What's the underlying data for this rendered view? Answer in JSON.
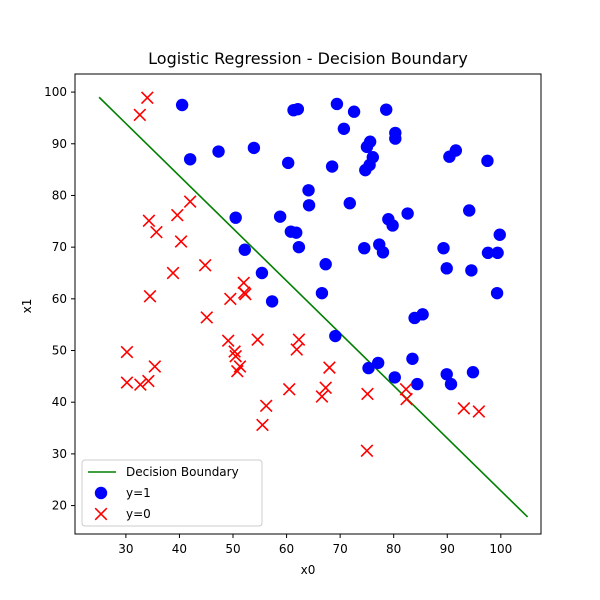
{
  "chart_data": {
    "type": "scatter",
    "title": "Logistic Regression - Decision Boundary",
    "xlabel": "x0",
    "ylabel": "x1",
    "xlim": [
      20.5,
      107.5
    ],
    "ylim": [
      14.5,
      103.5
    ],
    "xticks": [
      30,
      40,
      50,
      60,
      70,
      80,
      90,
      100
    ],
    "yticks": [
      20,
      30,
      40,
      50,
      60,
      70,
      80,
      90,
      100
    ],
    "grid": false,
    "legend_position": "lower-left",
    "legend": [
      {
        "label": "Decision Boundary",
        "kind": "line",
        "color": "#008000"
      },
      {
        "label": "y=1",
        "kind": "circle",
        "color": "#0000ff"
      },
      {
        "label": "y=0",
        "kind": "x",
        "color": "#ff0000"
      }
    ],
    "series": [
      {
        "name": "Decision Boundary",
        "kind": "line",
        "color": "#008000",
        "points": [
          [
            25.0,
            99.0
          ],
          [
            105.0,
            17.8
          ]
        ]
      },
      {
        "name": "y=1",
        "kind": "circle",
        "color": "#0000ff",
        "points": [
          [
            40.5,
            97.5
          ],
          [
            42.0,
            87.0
          ],
          [
            47.3,
            88.5
          ],
          [
            50.5,
            75.7
          ],
          [
            52.2,
            69.5
          ],
          [
            53.9,
            89.2
          ],
          [
            55.4,
            65.0
          ],
          [
            57.3,
            59.5
          ],
          [
            58.8,
            75.9
          ],
          [
            60.3,
            86.3
          ],
          [
            60.8,
            73.0
          ],
          [
            61.3,
            96.5
          ],
          [
            61.8,
            72.8
          ],
          [
            62.1,
            96.7
          ],
          [
            62.3,
            70.0
          ],
          [
            64.1,
            81.0
          ],
          [
            64.2,
            78.1
          ],
          [
            66.6,
            61.1
          ],
          [
            67.3,
            66.7
          ],
          [
            68.5,
            85.6
          ],
          [
            69.1,
            52.8
          ],
          [
            69.4,
            97.7
          ],
          [
            70.7,
            92.9
          ],
          [
            71.8,
            78.5
          ],
          [
            72.6,
            96.2
          ],
          [
            74.5,
            69.8
          ],
          [
            74.7,
            84.9
          ],
          [
            75.0,
            89.4
          ],
          [
            75.3,
            46.6
          ],
          [
            75.5,
            85.9
          ],
          [
            75.6,
            90.4
          ],
          [
            76.1,
            87.4
          ],
          [
            77.1,
            47.6
          ],
          [
            77.3,
            70.5
          ],
          [
            78.0,
            69.0
          ],
          [
            78.6,
            96.6
          ],
          [
            79.0,
            75.4
          ],
          [
            79.8,
            74.2
          ],
          [
            80.2,
            44.8
          ],
          [
            80.3,
            91.0
          ],
          [
            80.3,
            92.1
          ],
          [
            82.6,
            76.5
          ],
          [
            83.5,
            48.4
          ],
          [
            83.9,
            56.3
          ],
          [
            84.4,
            43.5
          ],
          [
            85.4,
            57.0
          ],
          [
            89.3,
            69.8
          ],
          [
            89.9,
            65.9
          ],
          [
            89.9,
            45.4
          ],
          [
            90.4,
            87.5
          ],
          [
            90.7,
            43.5
          ],
          [
            91.6,
            88.7
          ],
          [
            94.1,
            77.1
          ],
          [
            94.5,
            65.5
          ],
          [
            94.8,
            45.8
          ],
          [
            97.5,
            86.7
          ],
          [
            97.6,
            68.9
          ],
          [
            99.3,
            61.1
          ],
          [
            99.4,
            68.9
          ],
          [
            99.8,
            72.4
          ]
        ]
      },
      {
        "name": "y=0",
        "kind": "x",
        "color": "#ff0000",
        "points": [
          [
            30.2,
            43.8
          ],
          [
            30.2,
            49.7
          ],
          [
            32.6,
            95.6
          ],
          [
            32.7,
            43.4
          ],
          [
            34.0,
            98.9
          ],
          [
            34.2,
            44.1
          ],
          [
            34.3,
            75.1
          ],
          [
            34.5,
            60.5
          ],
          [
            35.4,
            46.9
          ],
          [
            35.7,
            72.9
          ],
          [
            38.8,
            65.0
          ],
          [
            39.6,
            76.2
          ],
          [
            40.3,
            71.1
          ],
          [
            42.0,
            78.8
          ],
          [
            44.8,
            66.5
          ],
          [
            45.1,
            56.4
          ],
          [
            49.1,
            51.9
          ],
          [
            49.5,
            60.0
          ],
          [
            50.3,
            49.8
          ],
          [
            50.5,
            48.9
          ],
          [
            50.8,
            46.0
          ],
          [
            51.3,
            46.9
          ],
          [
            52.0,
            63.1
          ],
          [
            52.1,
            61.2
          ],
          [
            52.3,
            60.9
          ],
          [
            54.6,
            52.1
          ],
          [
            55.5,
            35.6
          ],
          [
            56.2,
            39.3
          ],
          [
            60.5,
            42.5
          ],
          [
            61.9,
            50.2
          ],
          [
            62.3,
            52.1
          ],
          [
            66.6,
            41.1
          ],
          [
            67.3,
            42.8
          ],
          [
            68.0,
            46.7
          ],
          [
            75.0,
            30.6
          ],
          [
            75.1,
            41.6
          ],
          [
            82.3,
            42.5
          ],
          [
            82.4,
            40.6
          ],
          [
            93.1,
            38.8
          ],
          [
            95.9,
            38.2
          ]
        ]
      }
    ]
  }
}
